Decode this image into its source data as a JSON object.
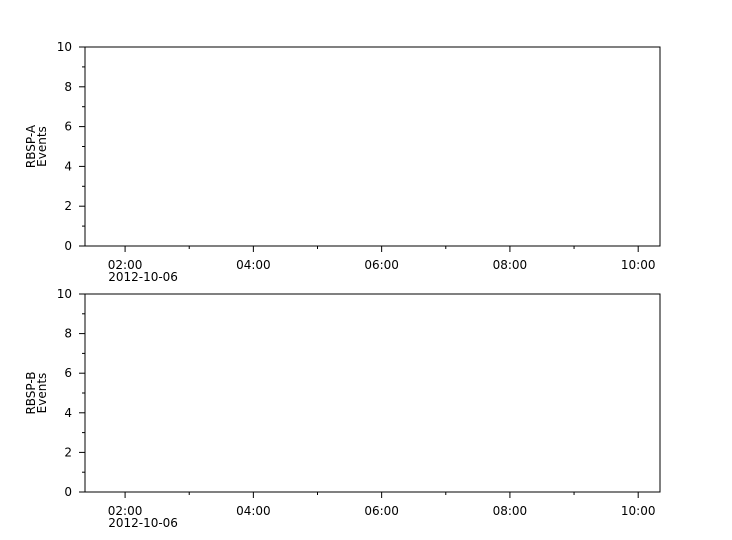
{
  "chart_data": [
    {
      "type": "line",
      "ylabel": [
        "RBSP-A",
        "Events"
      ],
      "series": [],
      "xlim": [
        1.375,
        10.34
      ],
      "ylim": [
        0,
        10
      ],
      "xticks": [
        {
          "value": 2,
          "label": "02:00"
        },
        {
          "value": 4,
          "label": "04:00"
        },
        {
          "value": 6,
          "label": "06:00"
        },
        {
          "value": 8,
          "label": "08:00"
        },
        {
          "value": 10,
          "label": "10:00"
        }
      ],
      "xminorticks": [
        3,
        5,
        7,
        9
      ],
      "xdate": "2012-10-06",
      "yticks": [
        0,
        2,
        4,
        6,
        8,
        10
      ],
      "yminorticks": [
        1,
        3,
        5,
        7,
        9
      ]
    },
    {
      "type": "line",
      "ylabel": [
        "RBSP-B",
        "Events"
      ],
      "series": [],
      "xlim": [
        1.375,
        10.34
      ],
      "ylim": [
        0,
        10
      ],
      "xticks": [
        {
          "value": 2,
          "label": "02:00"
        },
        {
          "value": 4,
          "label": "04:00"
        },
        {
          "value": 6,
          "label": "06:00"
        },
        {
          "value": 8,
          "label": "08:00"
        },
        {
          "value": 10,
          "label": "10:00"
        }
      ],
      "xminorticks": [
        3,
        5,
        7,
        9
      ],
      "xdate": "2012-10-06",
      "yticks": [
        0,
        2,
        4,
        6,
        8,
        10
      ],
      "yminorticks": [
        1,
        3,
        5,
        7,
        9
      ]
    }
  ]
}
